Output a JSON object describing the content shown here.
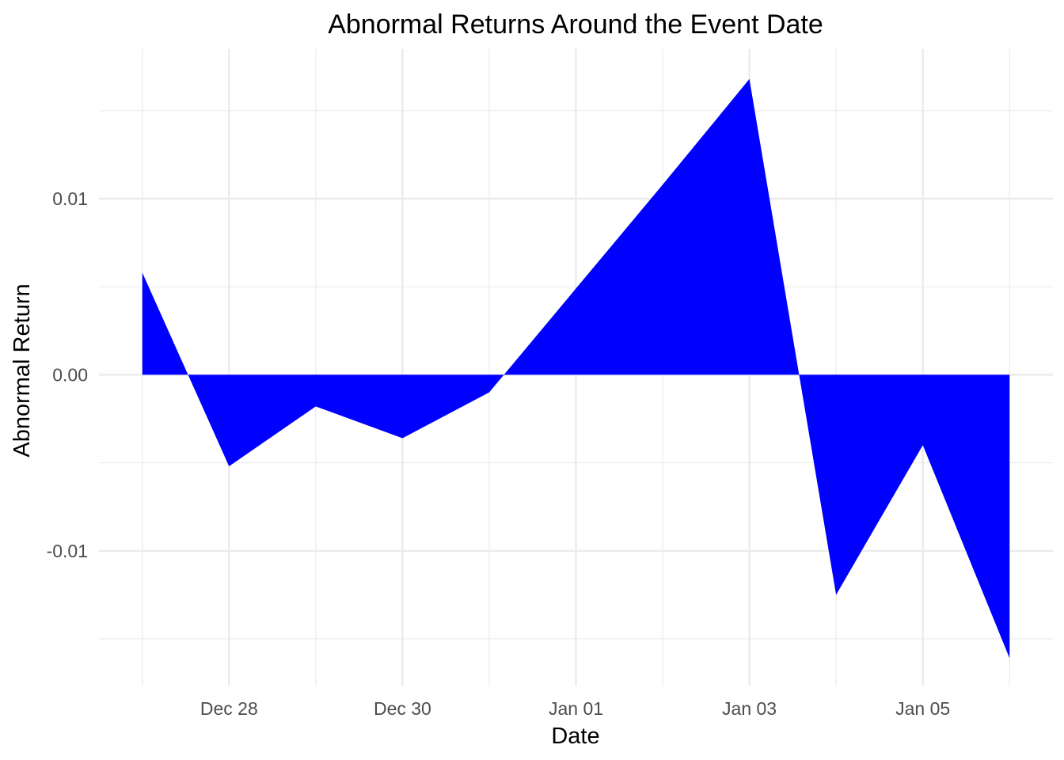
{
  "chart_data": {
    "type": "area",
    "title": "Abnormal Returns Around the Event Date",
    "xlabel": "Date",
    "ylabel": "Abnormal Return",
    "x": [
      "2023-12-27",
      "2023-12-28",
      "2023-12-29",
      "2023-12-30",
      "2023-12-31",
      "2024-01-01",
      "2024-01-02",
      "2024-01-03",
      "2024-01-04",
      "2024-01-05",
      "2024-01-06"
    ],
    "values": [
      0.0058,
      -0.0052,
      -0.0018,
      -0.0036,
      -0.001,
      0.0049,
      0.0108,
      0.0168,
      -0.0125,
      -0.004,
      -0.0161
    ],
    "xlim": [
      "2023-12-26.5",
      "2024-01-06.5"
    ],
    "ylim": [
      -0.0177,
      0.0185
    ],
    "x_ticks": [
      {
        "date": "2023-12-28",
        "label": "Dec 28"
      },
      {
        "date": "2023-12-30",
        "label": "Dec 30"
      },
      {
        "date": "2024-01-01",
        "label": "Jan 01"
      },
      {
        "date": "2024-01-03",
        "label": "Jan 03"
      },
      {
        "date": "2024-01-05",
        "label": "Jan 05"
      }
    ],
    "y_ticks": [
      {
        "value": 0.01,
        "label": "0.01"
      },
      {
        "value": 0.0,
        "label": "0.00"
      },
      {
        "value": -0.01,
        "label": "-0.01"
      }
    ],
    "y_minor_ticks": [
      -0.015,
      -0.005,
      0.005,
      0.015
    ],
    "fill_color": "#0000ff",
    "grid": true,
    "grid_color": "#ebebeb",
    "legend": "none"
  }
}
